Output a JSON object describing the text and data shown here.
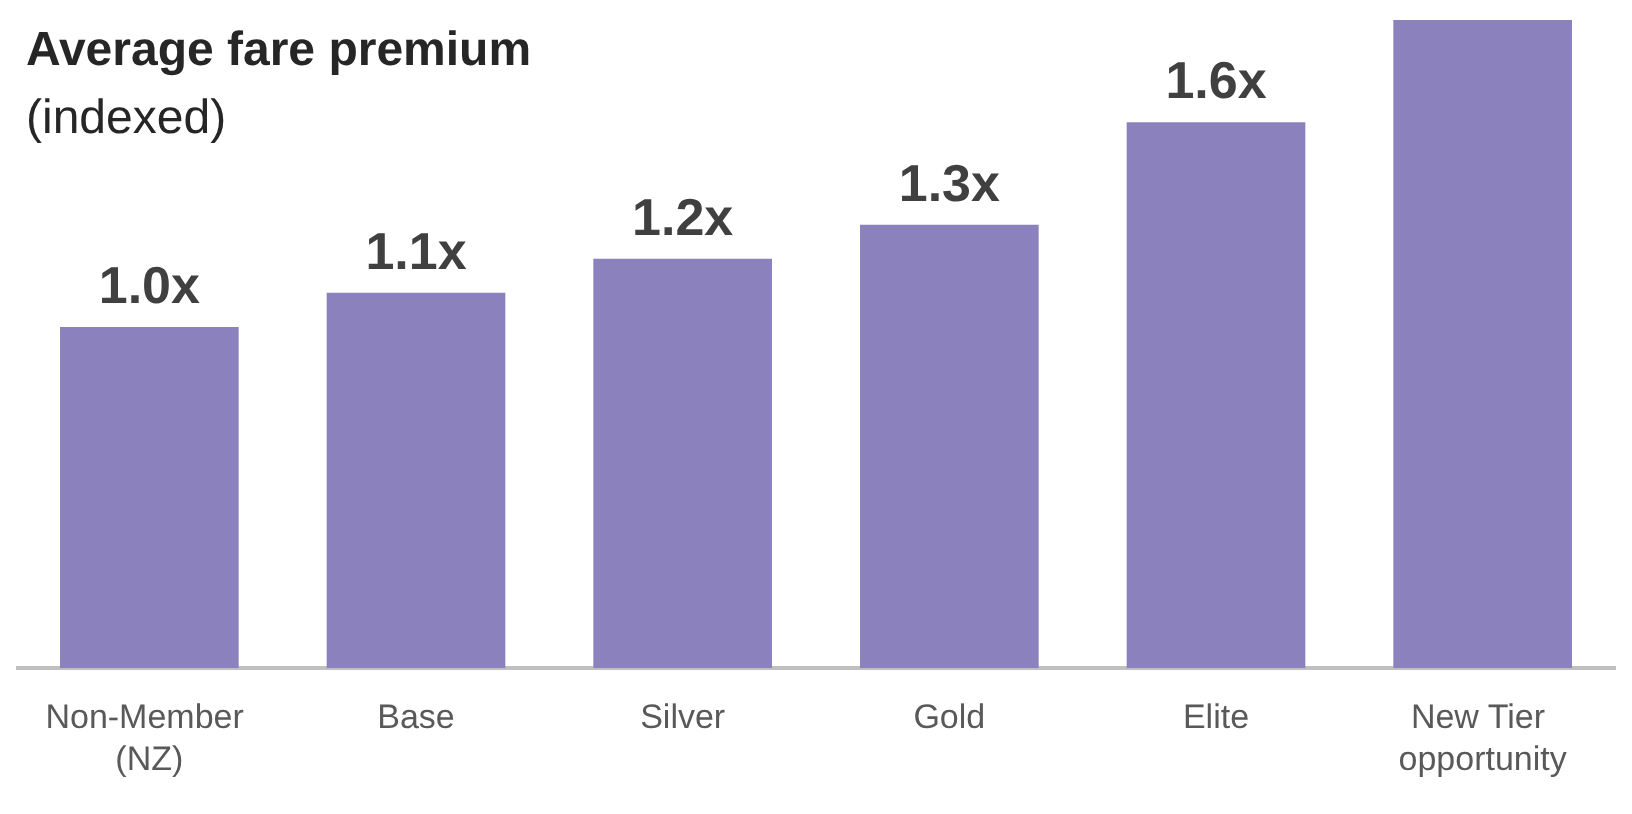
{
  "chart_data": {
    "type": "bar",
    "title": "Average fare premium",
    "subtitle": "(indexed)",
    "categories": [
      "Non-Member (NZ)",
      "Base",
      "Silver",
      "Gold",
      "Elite",
      "New Tier opportunity"
    ],
    "values": [
      1.0,
      1.1,
      1.2,
      1.3,
      1.6,
      1.9
    ],
    "value_labels": [
      "1.0x",
      "1.1x",
      "1.2x",
      "1.3x",
      "1.6x",
      null
    ],
    "color": "#8b82bd"
  }
}
